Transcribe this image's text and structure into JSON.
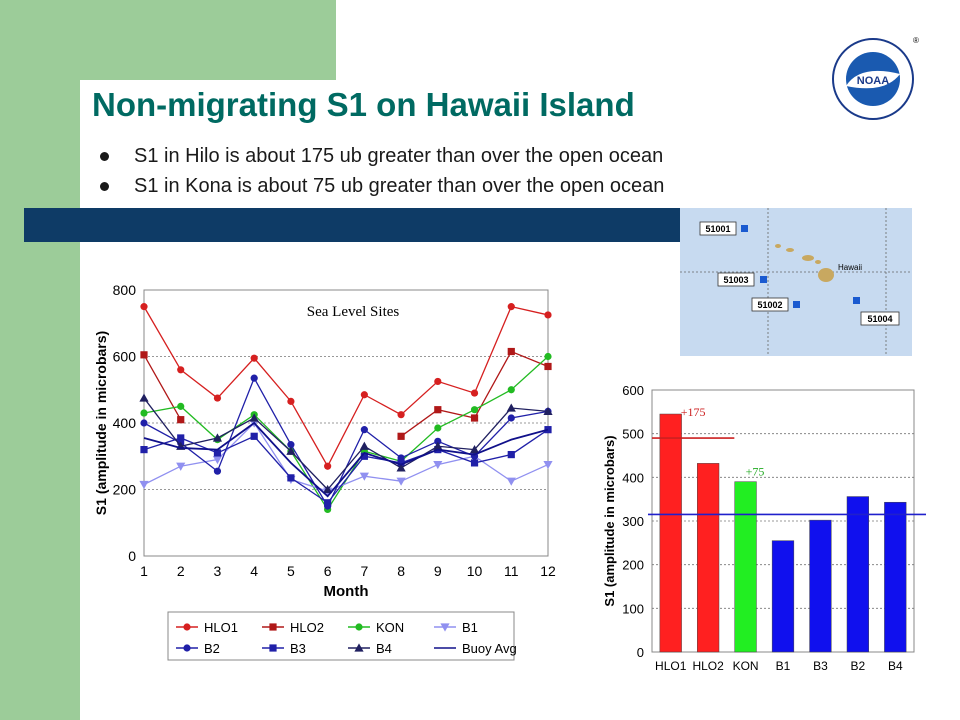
{
  "slide": {
    "title": "Non-migrating S1 on Hawaii Island",
    "bullets": [
      "S1 in Hilo is about 175 ub greater than over the open ocean",
      "S1 in Kona is about 75 ub greater than over the open ocean"
    ],
    "colors": {
      "title": "#006a62",
      "green_bg": "#9ccc99",
      "band": "#0e3b66"
    }
  },
  "logo": {
    "text": "NOAA",
    "registered": "®"
  },
  "map": {
    "labels": [
      "51001",
      "51003",
      "51002",
      "51004"
    ],
    "island_label": "Hawaii"
  },
  "chart_data": [
    {
      "type": "line",
      "title": "Sea Level Sites",
      "xlabel": "Month",
      "ylabel": "S1 (amplitude in microbars)",
      "x": [
        1,
        2,
        3,
        4,
        5,
        6,
        7,
        8,
        9,
        10,
        11,
        12
      ],
      "ylim": [
        0,
        800
      ],
      "yticks": [
        0,
        200,
        400,
        600,
        800
      ],
      "grid": true,
      "legend_position": "bottom",
      "series": [
        {
          "name": "HLO1",
          "color": "#d62020",
          "marker": "circle",
          "values": [
            750,
            560,
            475,
            595,
            465,
            270,
            485,
            425,
            525,
            490,
            750,
            725
          ]
        },
        {
          "name": "HLO2",
          "color": "#b01818",
          "marker": "square",
          "values": [
            605,
            410,
            null,
            null,
            null,
            null,
            null,
            360,
            440,
            415,
            615,
            570
          ]
        },
        {
          "name": "KON",
          "color": "#22bb22",
          "marker": "circle",
          "values": [
            430,
            450,
            350,
            425,
            315,
            140,
            315,
            285,
            385,
            440,
            500,
            600
          ]
        },
        {
          "name": "B1",
          "color": "#9090f0",
          "marker": "triangle-down",
          "values": [
            215,
            270,
            290,
            400,
            230,
            195,
            240,
            225,
            275,
            300,
            225,
            275
          ]
        },
        {
          "name": "B2",
          "color": "#2020a8",
          "marker": "circle",
          "values": [
            400,
            340,
            255,
            535,
            335,
            150,
            380,
            295,
            345,
            300,
            415,
            435
          ]
        },
        {
          "name": "B3",
          "color": "#2020a8",
          "marker": "square",
          "values": [
            320,
            355,
            310,
            360,
            235,
            160,
            300,
            280,
            320,
            280,
            305,
            380
          ]
        },
        {
          "name": "B4",
          "color": "#202060",
          "marker": "triangle-up",
          "values": [
            475,
            330,
            355,
            415,
            315,
            200,
            330,
            265,
            330,
            320,
            445,
            435
          ]
        },
        {
          "name": "Buoy Avg",
          "color": "#10108a",
          "marker": "none",
          "values": [
            355,
            325,
            320,
            400,
            280,
            180,
            310,
            275,
            320,
            305,
            350,
            380
          ]
        }
      ]
    },
    {
      "type": "bar",
      "categories": [
        "HLO1",
        "HLO2",
        "KON",
        "B1",
        "B3",
        "B2",
        "B4"
      ],
      "values": [
        545,
        432,
        390,
        255,
        302,
        356,
        343
      ],
      "colors": [
        "#ff2020",
        "#ff2020",
        "#22ee22",
        "#1010ee",
        "#1010ee",
        "#1010ee",
        "#1010ee"
      ],
      "ylabel": "S1 (amplitude in microbars)",
      "ylim": [
        0,
        600
      ],
      "yticks": [
        0,
        100,
        200,
        300,
        400,
        500,
        600
      ],
      "grid": true,
      "reference_lines": [
        {
          "value": 490,
          "color": "#cc2020",
          "extent": "HLO1-HLO2"
        },
        {
          "value": 315,
          "color": "#2020cc",
          "extent": "full"
        }
      ],
      "annotations": [
        {
          "text": "+175",
          "color": "#cc2020",
          "category": "HLO1"
        },
        {
          "text": "+75",
          "color": "#22aa22",
          "category": "KON"
        }
      ]
    }
  ]
}
